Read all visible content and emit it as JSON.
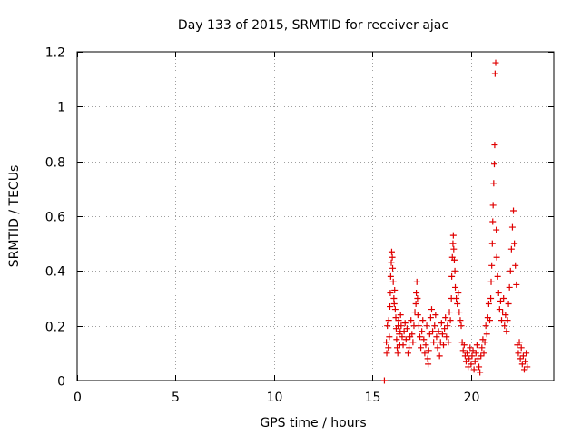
{
  "chart_data": {
    "type": "scatter",
    "title": "Day 133 of 2015, SRMTID for receiver ajac",
    "xlabel": "GPS time / hours",
    "ylabel": "SRMTID / TECUs",
    "xlim": [
      0,
      24.2
    ],
    "ylim": [
      0,
      1.2
    ],
    "x_ticks": [
      0,
      5,
      10,
      15,
      20
    ],
    "x_tick_labels": [
      "0",
      "5",
      "10",
      "15",
      "20"
    ],
    "y_ticks": [
      0,
      0.2,
      0.4,
      0.6,
      0.8,
      1.0,
      1.2
    ],
    "y_tick_labels": [
      "0",
      "0.2",
      "0.4",
      "0.6",
      "0.8",
      "1",
      "1.2"
    ],
    "grid": true,
    "marker": "+",
    "series": [
      {
        "name": "SRMTID",
        "color": "#e00000",
        "points": [
          [
            15.6,
            0.0
          ],
          [
            15.7,
            0.14
          ],
          [
            15.72,
            0.1
          ],
          [
            15.75,
            0.2
          ],
          [
            15.8,
            0.12
          ],
          [
            15.82,
            0.22
          ],
          [
            15.85,
            0.16
          ],
          [
            15.88,
            0.27
          ],
          [
            15.9,
            0.32
          ],
          [
            15.92,
            0.38
          ],
          [
            15.95,
            0.43
          ],
          [
            15.97,
            0.47
          ],
          [
            16.0,
            0.45
          ],
          [
            16.02,
            0.41
          ],
          [
            16.05,
            0.36
          ],
          [
            16.08,
            0.3
          ],
          [
            16.1,
            0.28
          ],
          [
            16.12,
            0.33
          ],
          [
            16.15,
            0.26
          ],
          [
            16.18,
            0.23
          ],
          [
            16.2,
            0.19
          ],
          [
            16.22,
            0.15
          ],
          [
            16.25,
            0.12
          ],
          [
            16.28,
            0.1
          ],
          [
            16.3,
            0.2
          ],
          [
            16.32,
            0.22
          ],
          [
            16.35,
            0.17
          ],
          [
            16.38,
            0.13
          ],
          [
            16.4,
            0.18
          ],
          [
            16.42,
            0.24
          ],
          [
            16.45,
            0.2
          ],
          [
            16.5,
            0.16
          ],
          [
            16.55,
            0.13
          ],
          [
            16.6,
            0.18
          ],
          [
            16.65,
            0.21
          ],
          [
            16.7,
            0.15
          ],
          [
            16.75,
            0.19
          ],
          [
            16.8,
            0.1
          ],
          [
            16.85,
            0.12
          ],
          [
            16.9,
            0.16
          ],
          [
            16.95,
            0.22
          ],
          [
            17.0,
            0.17
          ],
          [
            17.05,
            0.14
          ],
          [
            17.1,
            0.2
          ],
          [
            17.15,
            0.25
          ],
          [
            17.2,
            0.28
          ],
          [
            17.22,
            0.32
          ],
          [
            17.25,
            0.36
          ],
          [
            17.28,
            0.3
          ],
          [
            17.3,
            0.24
          ],
          [
            17.35,
            0.2
          ],
          [
            17.4,
            0.16
          ],
          [
            17.45,
            0.12
          ],
          [
            17.5,
            0.18
          ],
          [
            17.55,
            0.22
          ],
          [
            17.6,
            0.15
          ],
          [
            17.65,
            0.1
          ],
          [
            17.7,
            0.13
          ],
          [
            17.75,
            0.2
          ],
          [
            17.8,
            0.08
          ],
          [
            17.82,
            0.06
          ],
          [
            17.85,
            0.11
          ],
          [
            17.9,
            0.17
          ],
          [
            17.95,
            0.23
          ],
          [
            18.0,
            0.26
          ],
          [
            18.05,
            0.18
          ],
          [
            18.1,
            0.14
          ],
          [
            18.15,
            0.2
          ],
          [
            18.2,
            0.24
          ],
          [
            18.25,
            0.16
          ],
          [
            18.3,
            0.12
          ],
          [
            18.35,
            0.18
          ],
          [
            18.4,
            0.09
          ],
          [
            18.45,
            0.14
          ],
          [
            18.5,
            0.21
          ],
          [
            18.55,
            0.17
          ],
          [
            18.6,
            0.13
          ],
          [
            18.65,
            0.19
          ],
          [
            18.7,
            0.23
          ],
          [
            18.75,
            0.16
          ],
          [
            18.8,
            0.2
          ],
          [
            18.85,
            0.14
          ],
          [
            18.9,
            0.25
          ],
          [
            18.95,
            0.22
          ],
          [
            19.0,
            0.3
          ],
          [
            19.02,
            0.38
          ],
          [
            19.05,
            0.45
          ],
          [
            19.08,
            0.5
          ],
          [
            19.1,
            0.53
          ],
          [
            19.12,
            0.48
          ],
          [
            19.15,
            0.44
          ],
          [
            19.18,
            0.4
          ],
          [
            19.2,
            0.34
          ],
          [
            19.25,
            0.3
          ],
          [
            19.3,
            0.28
          ],
          [
            19.35,
            0.32
          ],
          [
            19.4,
            0.25
          ],
          [
            19.45,
            0.22
          ],
          [
            19.5,
            0.2
          ],
          [
            19.55,
            0.14
          ],
          [
            19.6,
            0.11
          ],
          [
            19.65,
            0.13
          ],
          [
            19.7,
            0.09
          ],
          [
            19.75,
            0.07
          ],
          [
            19.8,
            0.1
          ],
          [
            19.85,
            0.05
          ],
          [
            19.9,
            0.08
          ],
          [
            19.95,
            0.12
          ],
          [
            20.0,
            0.06
          ],
          [
            20.05,
            0.09
          ],
          [
            20.1,
            0.11
          ],
          [
            20.15,
            0.04
          ],
          [
            20.2,
            0.07
          ],
          [
            20.25,
            0.1
          ],
          [
            20.3,
            0.13
          ],
          [
            20.35,
            0.08
          ],
          [
            20.4,
            0.05
          ],
          [
            20.45,
            0.03
          ],
          [
            20.5,
            0.09
          ],
          [
            20.55,
            0.12
          ],
          [
            20.6,
            0.15
          ],
          [
            20.65,
            0.1
          ],
          [
            20.7,
            0.14
          ],
          [
            20.75,
            0.2
          ],
          [
            20.8,
            0.17
          ],
          [
            20.85,
            0.23
          ],
          [
            20.9,
            0.28
          ],
          [
            20.95,
            0.22
          ],
          [
            21.0,
            0.3
          ],
          [
            21.02,
            0.36
          ],
          [
            21.05,
            0.42
          ],
          [
            21.08,
            0.5
          ],
          [
            21.1,
            0.58
          ],
          [
            21.12,
            0.64
          ],
          [
            21.15,
            0.72
          ],
          [
            21.18,
            0.79
          ],
          [
            21.2,
            0.86
          ],
          [
            21.22,
            1.12
          ],
          [
            21.25,
            1.16
          ],
          [
            21.28,
            0.55
          ],
          [
            21.3,
            0.45
          ],
          [
            21.35,
            0.38
          ],
          [
            21.4,
            0.32
          ],
          [
            21.45,
            0.26
          ],
          [
            21.5,
            0.29
          ],
          [
            21.55,
            0.22
          ],
          [
            21.6,
            0.25
          ],
          [
            21.65,
            0.3
          ],
          [
            21.7,
            0.2
          ],
          [
            21.75,
            0.24
          ],
          [
            21.8,
            0.18
          ],
          [
            21.85,
            0.22
          ],
          [
            21.9,
            0.28
          ],
          [
            21.95,
            0.34
          ],
          [
            22.0,
            0.4
          ],
          [
            22.05,
            0.48
          ],
          [
            22.1,
            0.56
          ],
          [
            22.15,
            0.62
          ],
          [
            22.2,
            0.5
          ],
          [
            22.25,
            0.42
          ],
          [
            22.3,
            0.35
          ],
          [
            22.35,
            0.13
          ],
          [
            22.4,
            0.1
          ],
          [
            22.45,
            0.14
          ],
          [
            22.5,
            0.08
          ],
          [
            22.55,
            0.12
          ],
          [
            22.6,
            0.06
          ],
          [
            22.65,
            0.09
          ],
          [
            22.7,
            0.04
          ],
          [
            22.75,
            0.07
          ],
          [
            22.8,
            0.1
          ],
          [
            22.85,
            0.05
          ]
        ]
      }
    ]
  }
}
